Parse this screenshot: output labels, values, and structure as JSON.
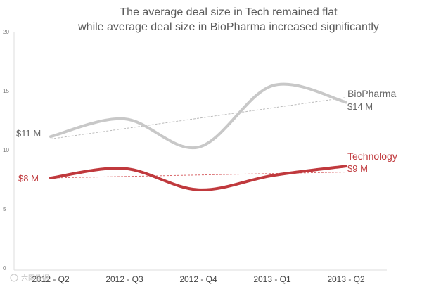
{
  "chart_data": {
    "type": "line",
    "title": [
      "The average deal size in Tech remained flat",
      "while average deal size in BioPharma increased significantly"
    ],
    "categories": [
      "2012 - Q2",
      "2012 - Q3",
      "2012 - Q4",
      "2013 - Q1",
      "2013 - Q2"
    ],
    "ylim": [
      0,
      20
    ],
    "yticks": [
      "0",
      "5",
      "10",
      "15",
      "20"
    ],
    "grid": false,
    "series": [
      {
        "name": "BioPharma",
        "values": [
          11.3,
          12.8,
          10.4,
          15.6,
          14.2
        ],
        "trend": [
          11.1,
          14.6
        ],
        "color": "#c8c8c8",
        "label_color": "#666666",
        "start_label": "$11 M",
        "end_label": "$14 M"
      },
      {
        "name": "Technology",
        "values": [
          7.8,
          8.6,
          6.8,
          8.0,
          8.8
        ],
        "trend": [
          7.8,
          8.3
        ],
        "color": "#c0393d",
        "label_color": "#c0393d",
        "start_label": "$8 M",
        "end_label": "$9 M"
      }
    ]
  },
  "watermark": "六图数据"
}
